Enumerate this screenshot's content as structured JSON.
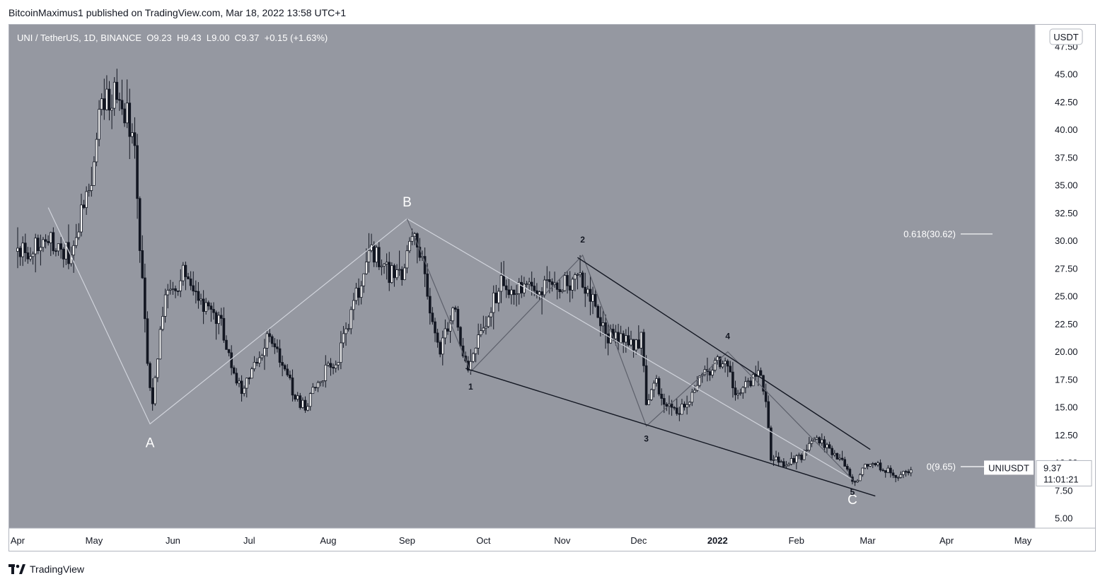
{
  "header": {
    "publisher": "BitcoinMaximus1",
    "published_text": "published on",
    "platform": "TradingView.com",
    "datetime": "Mar 18, 2022 13:58 UTC+1"
  },
  "legend": {
    "symbol": "UNI / TetherUS, 1D, BINANCE",
    "open_label": "O",
    "open": "9.23",
    "high_label": "H",
    "high": "9.43",
    "low_label": "L",
    "low": "9.00",
    "close_label": "C",
    "close": "9.37",
    "change": "+0.15 (+1.63%)"
  },
  "currency_badge": "USDT",
  "price_tag": {
    "symbol": "UNIUSDT",
    "price": "9.37",
    "countdown": "11:01:21"
  },
  "footer": {
    "brand": "TradingView"
  },
  "colors": {
    "background": "#9598a1",
    "candle": "#131722",
    "wedge_lines": "#131722",
    "abc_lines": "#d1d4dc",
    "wave_lines": "#5d606b",
    "fib_line": "#ffffff"
  },
  "chart_data": {
    "type": "candlestick",
    "yaxis": {
      "min": 5,
      "max": 47.5,
      "ticks": [
        "5.00",
        "7.50",
        "10.00",
        "12.50",
        "15.00",
        "17.50",
        "20.00",
        "22.50",
        "25.00",
        "27.50",
        "30.00",
        "32.50",
        "35.00",
        "37.50",
        "40.00",
        "42.50",
        "45.00",
        "47.50"
      ]
    },
    "xaxis": {
      "labels": [
        "Apr",
        "May",
        "Jun",
        "Jul",
        "Aug",
        "Sep",
        "Oct",
        "Nov",
        "Dec",
        "2022",
        "Feb",
        "Mar",
        "Apr",
        "May"
      ],
      "dates": [
        "2021-04-01",
        "2021-05-01",
        "2021-06-01",
        "2021-07-01",
        "2021-08-01",
        "2021-09-01",
        "2021-10-01",
        "2021-11-01",
        "2021-12-01",
        "2022-01-01",
        "2022-02-01",
        "2022-03-01",
        "2022-04-01",
        "2022-05-01"
      ]
    },
    "anchors": [
      [
        "2021-04-01",
        29.0
      ],
      [
        "2021-04-15",
        30.0
      ],
      [
        "2021-04-22",
        28.5
      ],
      [
        "2021-04-30",
        36.0
      ],
      [
        "2021-05-04",
        42.5
      ],
      [
        "2021-05-10",
        43.5
      ],
      [
        "2021-05-14",
        41.0
      ],
      [
        "2021-05-17",
        38.5
      ],
      [
        "2021-05-19",
        30.0
      ],
      [
        "2021-05-22",
        19.0
      ],
      [
        "2021-05-24",
        15.0
      ],
      [
        "2021-05-28",
        24.0
      ],
      [
        "2021-06-05",
        27.0
      ],
      [
        "2021-06-12",
        24.5
      ],
      [
        "2021-06-20",
        22.5
      ],
      [
        "2021-06-24",
        18.5
      ],
      [
        "2021-06-28",
        16.5
      ],
      [
        "2021-07-04",
        19.5
      ],
      [
        "2021-07-08",
        21.0
      ],
      [
        "2021-07-14",
        19.0
      ],
      [
        "2021-07-20",
        15.5
      ],
      [
        "2021-07-23",
        15.0
      ],
      [
        "2021-07-28",
        17.5
      ],
      [
        "2021-08-05",
        19.5
      ],
      [
        "2021-08-12",
        25.0
      ],
      [
        "2021-08-18",
        29.0
      ],
      [
        "2021-08-25",
        27.0
      ],
      [
        "2021-08-31",
        27.5
      ],
      [
        "2021-09-03",
        31.5
      ],
      [
        "2021-09-07",
        28.0
      ],
      [
        "2021-09-10",
        23.0
      ],
      [
        "2021-09-14",
        20.0
      ],
      [
        "2021-09-20",
        24.5
      ],
      [
        "2021-09-22",
        20.0
      ],
      [
        "2021-09-26",
        18.5
      ],
      [
        "2021-10-01",
        22.5
      ],
      [
        "2021-10-08",
        26.0
      ],
      [
        "2021-10-16",
        26.0
      ],
      [
        "2021-10-22",
        25.0
      ],
      [
        "2021-10-28",
        26.5
      ],
      [
        "2021-11-03",
        26.0
      ],
      [
        "2021-11-08",
        27.0
      ],
      [
        "2021-11-14",
        24.5
      ],
      [
        "2021-11-18",
        21.5
      ],
      [
        "2021-11-25",
        21.0
      ],
      [
        "2021-11-30",
        20.5
      ],
      [
        "2021-12-02",
        21.5
      ],
      [
        "2021-12-04",
        15.5
      ],
      [
        "2021-12-08",
        17.0
      ],
      [
        "2021-12-14",
        14.5
      ],
      [
        "2021-12-20",
        15.0
      ],
      [
        "2021-12-26",
        18.0
      ],
      [
        "2022-01-01",
        19.0
      ],
      [
        "2022-01-05",
        18.5
      ],
      [
        "2022-01-08",
        16.5
      ],
      [
        "2022-01-13",
        17.0
      ],
      [
        "2022-01-17",
        18.0
      ],
      [
        "2022-01-20",
        16.0
      ],
      [
        "2022-01-22",
        10.5
      ],
      [
        "2022-01-27",
        10.0
      ],
      [
        "2022-02-03",
        10.5
      ],
      [
        "2022-02-09",
        12.5
      ],
      [
        "2022-02-14",
        11.0
      ],
      [
        "2022-02-18",
        10.5
      ],
      [
        "2022-02-22",
        9.0
      ],
      [
        "2022-02-24",
        8.2
      ],
      [
        "2022-03-01",
        10.0
      ],
      [
        "2022-03-04",
        9.8
      ],
      [
        "2022-03-09",
        9.2
      ],
      [
        "2022-03-13",
        8.7
      ],
      [
        "2022-03-18",
        9.37
      ]
    ],
    "patterns": {
      "abc": [
        [
          "2021-04-13",
          33.0
        ],
        [
          "2021-05-23",
          13.5
        ],
        [
          "2021-09-01",
          32.0
        ],
        [
          "2022-02-23",
          8.5
        ]
      ],
      "waves": [
        [
          "2021-09-01",
          32.0
        ],
        [
          "2021-09-26",
          18.2
        ],
        [
          "2021-11-09",
          28.7
        ],
        [
          "2021-12-04",
          13.3
        ],
        [
          "2022-01-05",
          20.0
        ],
        [
          "2022-02-23",
          8.5
        ]
      ],
      "wedge_upper": [
        [
          "2021-11-07",
          28.5
        ],
        [
          "2022-03-02",
          11.2
        ]
      ],
      "wedge_lower": [
        [
          "2021-09-24",
          18.5
        ],
        [
          "2022-03-04",
          7.0
        ]
      ]
    },
    "wave_labels": [
      {
        "text": "A",
        "date": "2021-05-23",
        "price": 13.3,
        "pos": "below"
      },
      {
        "text": "B",
        "date": "2021-09-01",
        "price": 31.7,
        "pos": "above"
      },
      {
        "text": "C",
        "date": "2022-02-23",
        "price": 8.2,
        "pos": "below"
      },
      {
        "text": "1",
        "date": "2021-09-26",
        "price": 18.0,
        "pos": "below"
      },
      {
        "text": "2",
        "date": "2021-11-09",
        "price": 28.7,
        "pos": "above"
      },
      {
        "text": "3",
        "date": "2021-12-04",
        "price": 13.3,
        "pos": "below"
      },
      {
        "text": "4",
        "date": "2022-01-05",
        "price": 20.0,
        "pos": "above"
      },
      {
        "text": "5",
        "date": "2022-02-23",
        "price": 8.5,
        "pos": "below"
      }
    ],
    "fib_levels": [
      {
        "label": "0.618(30.62)",
        "price": 30.62
      },
      {
        "label": "0(9.65)",
        "price": 9.65
      }
    ]
  }
}
